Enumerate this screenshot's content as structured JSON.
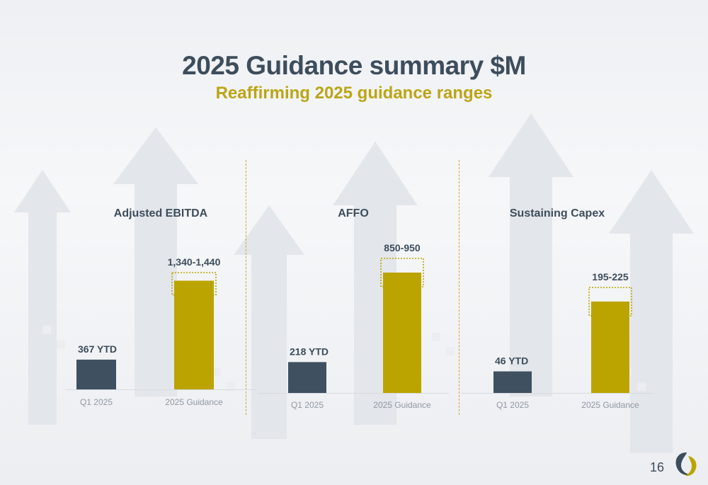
{
  "slide": {
    "title": "2025 Guidance summary $M",
    "subtitle": "Reaffirming 2025 guidance ranges",
    "page_number": "16"
  },
  "colors": {
    "actual_bar": "#3f5060",
    "guidance_bar": "#bba400",
    "range_outline": "#bba400",
    "title": "#3d4d5c",
    "subtitle": "#bba516",
    "divider": "#c9a92a"
  },
  "chart_data": [
    {
      "type": "bar",
      "title": "Adjusted EBITDA",
      "categories": [
        "Q1 2025",
        "2025 Guidance"
      ],
      "values": [
        367,
        1340
      ],
      "range_high": [
        null,
        1440
      ],
      "data_labels": [
        "367 YTD",
        "1,340-1,440"
      ],
      "ylim": [
        0,
        1440
      ]
    },
    {
      "type": "bar",
      "title": "AFFO",
      "categories": [
        "Q1 2025",
        "2025 Guidance"
      ],
      "values": [
        218,
        850
      ],
      "range_high": [
        null,
        950
      ],
      "data_labels": [
        "218 YTD",
        "850-950"
      ],
      "ylim": [
        0,
        950
      ]
    },
    {
      "type": "bar",
      "title": "Sustaining Capex",
      "categories": [
        "Q1 2025",
        "2025 Guidance"
      ],
      "values": [
        46,
        195
      ],
      "range_high": [
        null,
        225
      ],
      "data_labels": [
        "46 YTD",
        "195-225"
      ],
      "ylim": [
        0,
        225
      ]
    }
  ]
}
